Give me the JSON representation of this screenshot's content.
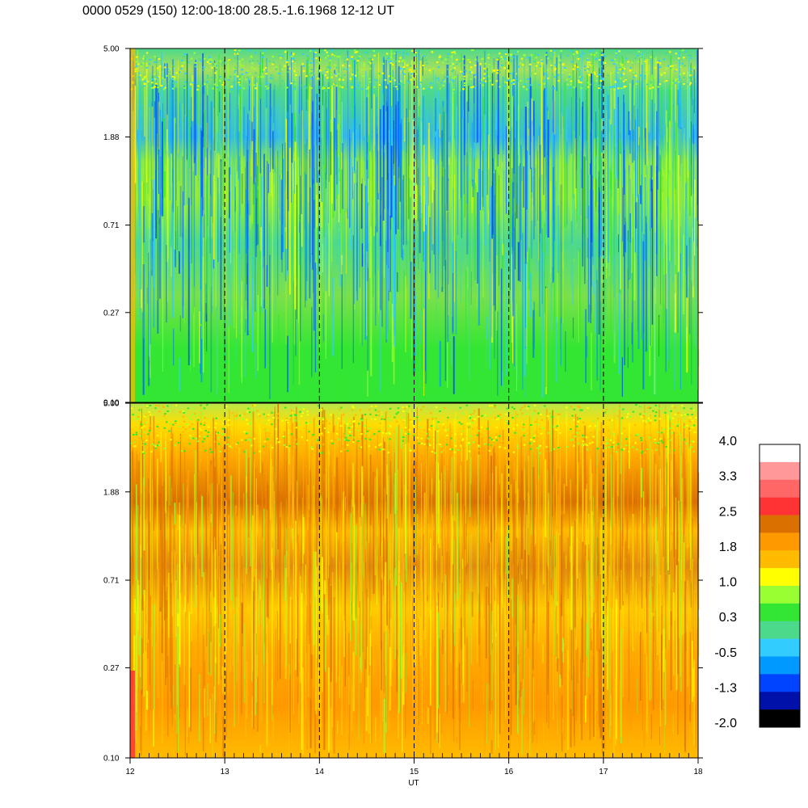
{
  "title": "0000 0529 (150) 12:00-18:00 28.5.-1.6.1968  12-12 UT",
  "chart_data": [
    {
      "type": "heatmap",
      "panel": "top",
      "x_range": [
        12,
        18
      ],
      "y_scale": "log",
      "y_range": [
        0.1,
        5.0
      ],
      "y_ticks": [
        "5.00",
        "1.88",
        "0.71",
        "0.27",
        "0.10"
      ],
      "x_ticks": [
        "12",
        "13",
        "14",
        "15",
        "16",
        "17",
        "18"
      ],
      "dashed_lines_at": [
        13,
        14,
        15,
        16,
        17
      ],
      "dominant_levels": [
        "green",
        "teal",
        "blue",
        "yellow"
      ]
    },
    {
      "type": "heatmap",
      "panel": "bottom",
      "x_range": [
        12,
        18
      ],
      "y_scale": "log",
      "y_range": [
        0.1,
        5.0
      ],
      "y_ticks": [
        "5.00",
        "1.88",
        "0.71",
        "0.27",
        "0.10"
      ],
      "x_ticks": [
        "12",
        "13",
        "14",
        "15",
        "16",
        "17",
        "18"
      ],
      "xlabel": "UT",
      "dashed_lines_at": [
        13,
        14,
        15,
        16,
        17
      ],
      "dominant_levels": [
        "orange",
        "light orange",
        "yellow",
        "dark orange"
      ]
    }
  ],
  "colorbar": {
    "labels": [
      "4.0",
      "3.3",
      "2.5",
      "1.8",
      "1.0",
      "0.3",
      "-0.5",
      "-1.3",
      "-2.0"
    ],
    "colors": [
      "#ffffff",
      "#ff9999",
      "#ff6666",
      "#ff3333",
      "#d97000",
      "#ff9900",
      "#ffbb00",
      "#ffff00",
      "#99ff33",
      "#33e633",
      "#4dd98c",
      "#33ccff",
      "#0099ff",
      "#0044ff",
      "#0011aa",
      "#000000"
    ]
  }
}
